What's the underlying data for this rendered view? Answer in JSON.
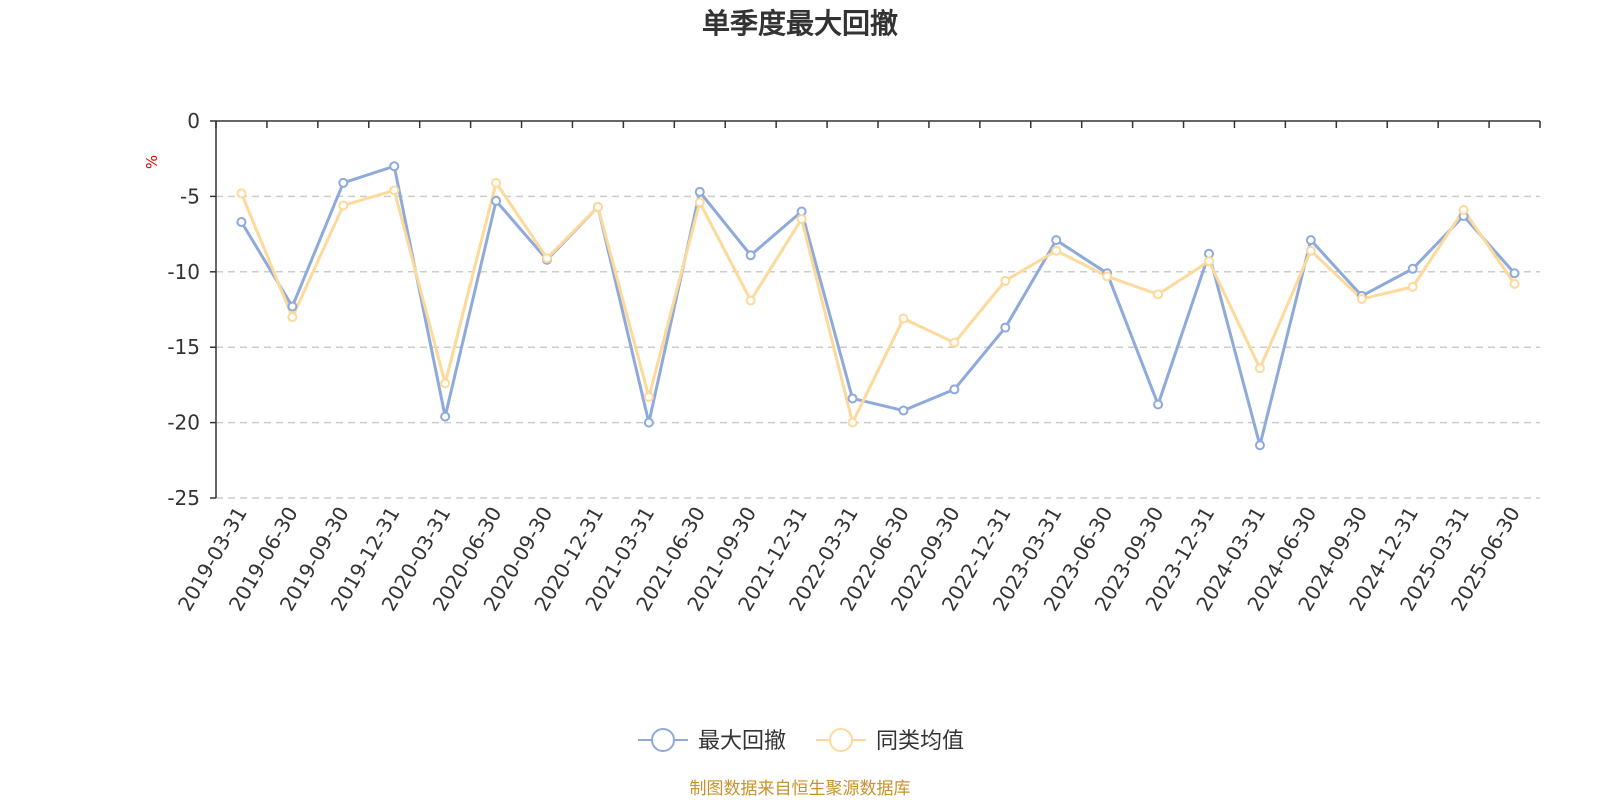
{
  "chart_data": {
    "type": "line",
    "title": "单季度最大回撤",
    "unit": "%",
    "source": "制图数据来自恒生聚源数据库",
    "ylim": [
      -25,
      0
    ],
    "yticks": [
      0,
      -5,
      -10,
      -15,
      -20,
      -25
    ],
    "grid": true,
    "legend_position": "bottom-center",
    "categories": [
      "2019-03-31",
      "2019-06-30",
      "2019-09-30",
      "2019-12-31",
      "2020-03-31",
      "2020-06-30",
      "2020-09-30",
      "2020-12-31",
      "2021-03-31",
      "2021-06-30",
      "2021-09-30",
      "2021-12-31",
      "2022-03-31",
      "2022-06-30",
      "2022-09-30",
      "2022-12-31",
      "2023-03-31",
      "2023-06-30",
      "2023-09-30",
      "2023-12-31",
      "2024-03-31",
      "2024-06-30",
      "2024-09-30",
      "2024-12-31",
      "2025-03-31",
      "2025-06-30"
    ],
    "series": [
      {
        "name": "最大回撤",
        "color": "#8eaadb",
        "values": [
          -6.7,
          -12.3,
          -4.1,
          -3.0,
          -19.6,
          -5.3,
          -9.2,
          -5.7,
          -20.0,
          -4.7,
          -8.9,
          -6.0,
          -18.4,
          -19.2,
          -17.8,
          -13.7,
          -7.9,
          -10.1,
          -18.8,
          -8.8,
          -21.5,
          -7.9,
          -11.6,
          -9.8,
          -6.3,
          -10.1
        ]
      },
      {
        "name": "同类均值",
        "color": "#fdd99b",
        "values": [
          -4.8,
          -13.0,
          -5.6,
          -4.6,
          -17.4,
          -4.1,
          -9.1,
          -5.7,
          -18.3,
          -5.4,
          -11.9,
          -6.5,
          -20.0,
          -13.1,
          -14.7,
          -10.6,
          -8.6,
          -10.3,
          -11.5,
          -9.3,
          -16.4,
          -8.6,
          -11.8,
          -11.0,
          -5.9,
          -10.8
        ]
      }
    ]
  }
}
